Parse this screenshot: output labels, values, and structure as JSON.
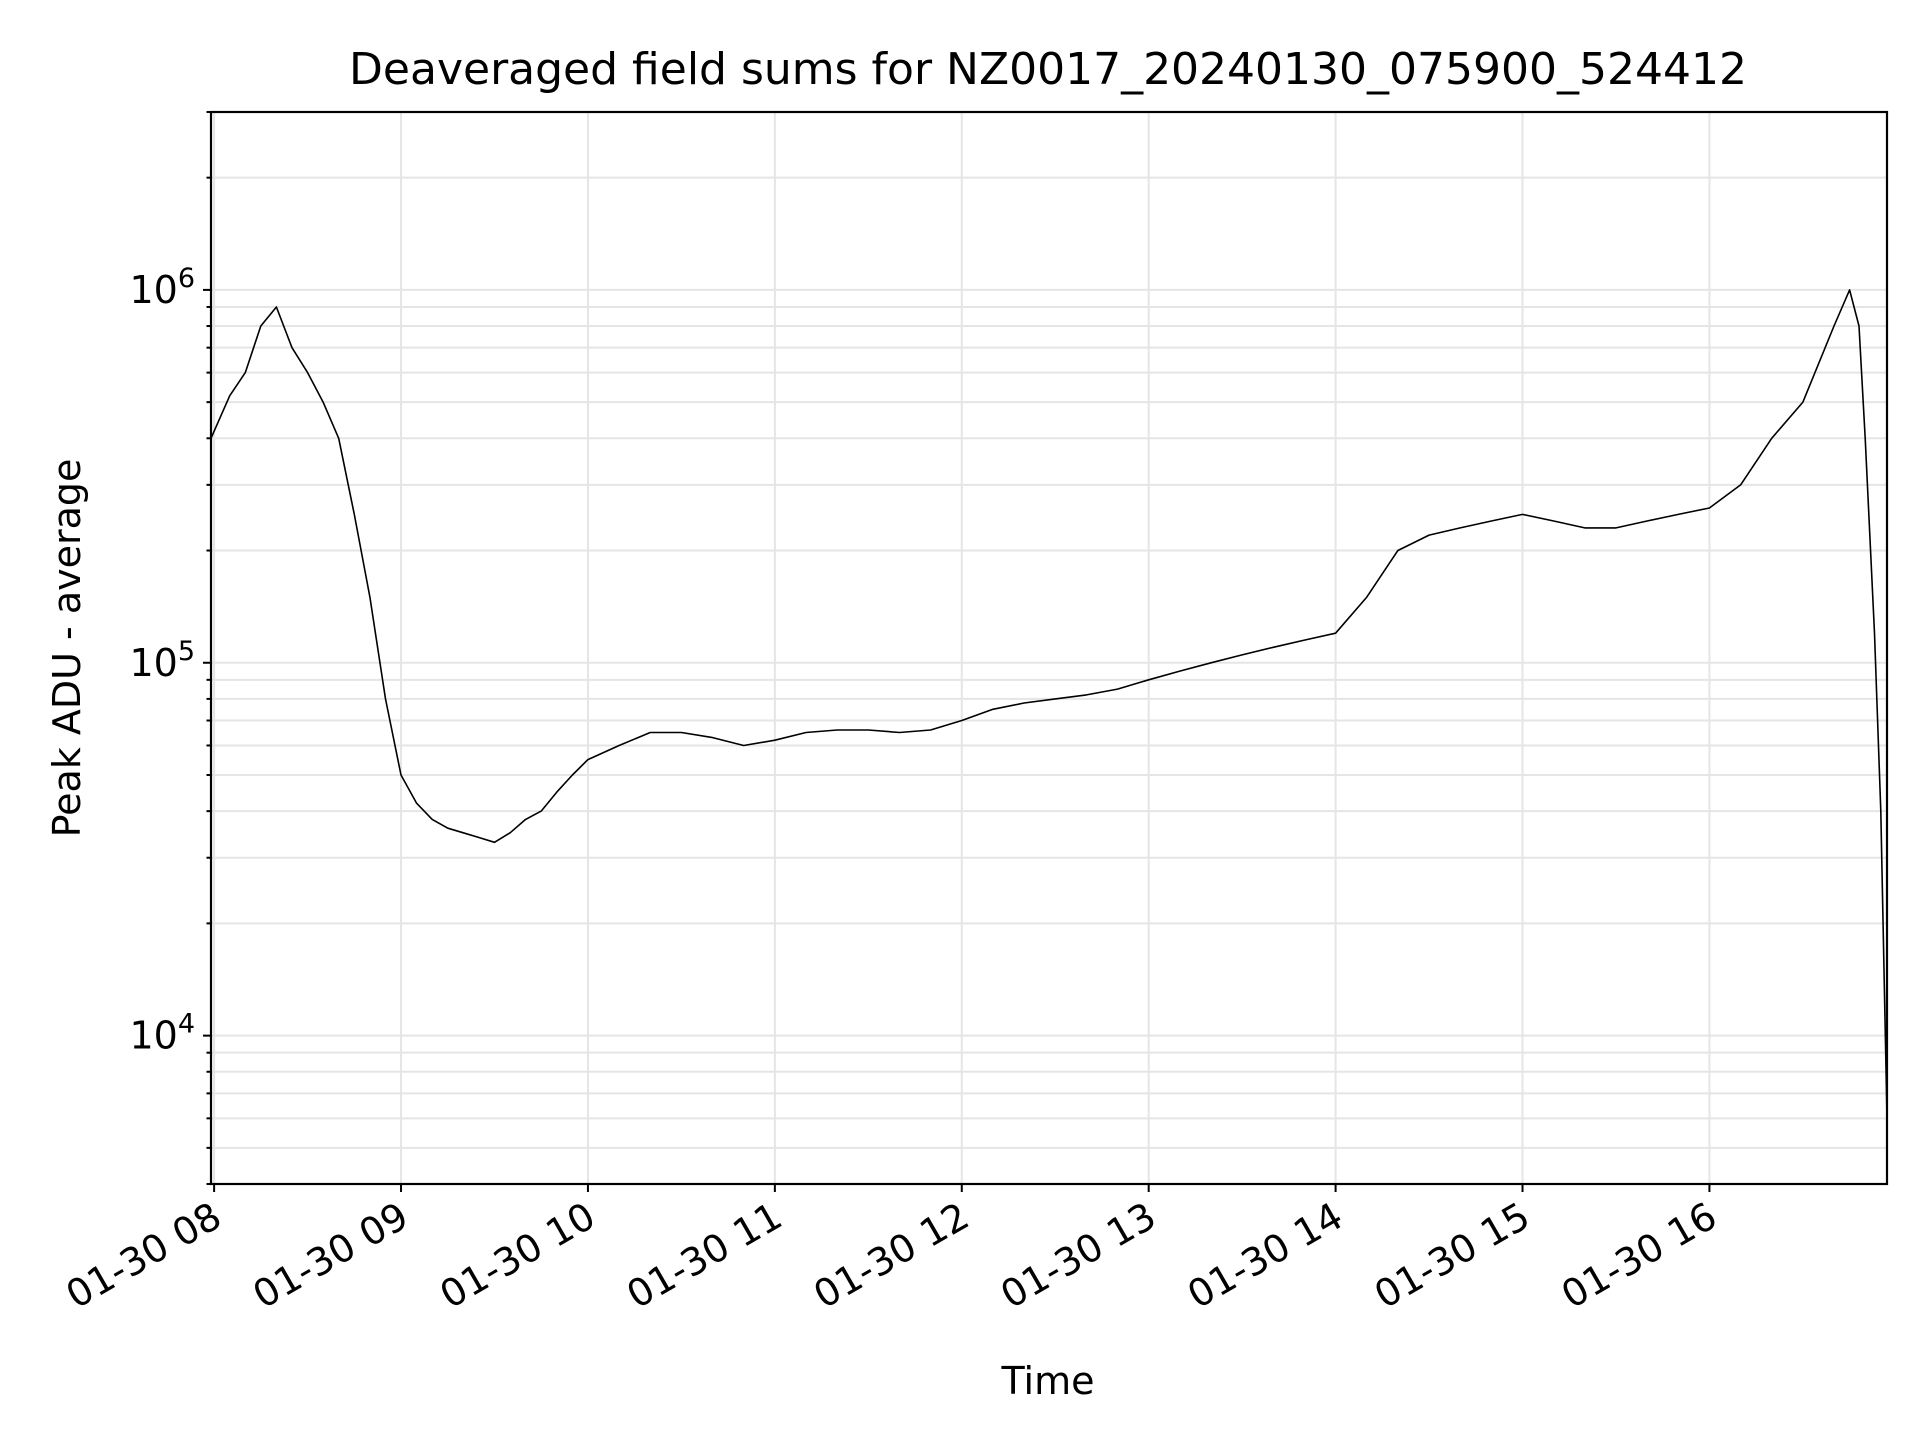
{
  "chart_data": {
    "type": "line",
    "title": "Deaveraged field sums for NZ0017_20240130_075900_524412",
    "xlabel": "Time",
    "ylabel": "Peak ADU - average",
    "yscale": "log",
    "xlim": [
      "2024-01-30 07:59",
      "2024-01-30 16:57"
    ],
    "ylim": [
      4000,
      3000000
    ],
    "x_ticks": [
      "01-30 08",
      "01-30 09",
      "01-30 10",
      "01-30 11",
      "01-30 12",
      "01-30 13",
      "01-30 14",
      "01-30 15",
      "01-30 16"
    ],
    "y_ticks": [
      {
        "value": 10000,
        "base": "10",
        "exp": "4"
      },
      {
        "value": 100000,
        "base": "10",
        "exp": "5"
      },
      {
        "value": 1000000,
        "base": "10",
        "exp": "6"
      }
    ],
    "grid": true,
    "line_color": "#000000",
    "series": [
      {
        "x": [
          "2024-01-30 07:59",
          "2024-01-30 08:05",
          "2024-01-30 08:10",
          "2024-01-30 08:15",
          "2024-01-30 08:20",
          "2024-01-30 08:25",
          "2024-01-30 08:30",
          "2024-01-30 08:35",
          "2024-01-30 08:40",
          "2024-01-30 08:45",
          "2024-01-30 08:50",
          "2024-01-30 08:55",
          "2024-01-30 09:00",
          "2024-01-30 09:05",
          "2024-01-30 09:10",
          "2024-01-30 09:15",
          "2024-01-30 09:20",
          "2024-01-30 09:25",
          "2024-01-30 09:30",
          "2024-01-30 09:35",
          "2024-01-30 09:40",
          "2024-01-30 09:45",
          "2024-01-30 09:50",
          "2024-01-30 09:55",
          "2024-01-30 10:00",
          "2024-01-30 10:10",
          "2024-01-30 10:20",
          "2024-01-30 10:30",
          "2024-01-30 10:40",
          "2024-01-30 10:50",
          "2024-01-30 11:00",
          "2024-01-30 11:10",
          "2024-01-30 11:20",
          "2024-01-30 11:30",
          "2024-01-30 11:40",
          "2024-01-30 11:50",
          "2024-01-30 12:00",
          "2024-01-30 12:10",
          "2024-01-30 12:20",
          "2024-01-30 12:30",
          "2024-01-30 12:40",
          "2024-01-30 12:50",
          "2024-01-30 13:00",
          "2024-01-30 13:10",
          "2024-01-30 13:20",
          "2024-01-30 13:30",
          "2024-01-30 13:40",
          "2024-01-30 13:50",
          "2024-01-30 14:00",
          "2024-01-30 14:10",
          "2024-01-30 14:20",
          "2024-01-30 14:30",
          "2024-01-30 14:40",
          "2024-01-30 14:50",
          "2024-01-30 15:00",
          "2024-01-30 15:10",
          "2024-01-30 15:20",
          "2024-01-30 15:30",
          "2024-01-30 15:40",
          "2024-01-30 15:50",
          "2024-01-30 16:00",
          "2024-01-30 16:10",
          "2024-01-30 16:20",
          "2024-01-30 16:30",
          "2024-01-30 16:40",
          "2024-01-30 16:45",
          "2024-01-30 16:48",
          "2024-01-30 16:50",
          "2024-01-30 16:53",
          "2024-01-30 16:55",
          "2024-01-30 16:57"
        ],
        "y": [
          400000,
          520000,
          600000,
          800000,
          900000,
          700000,
          600000,
          500000,
          400000,
          250000,
          150000,
          80000,
          50000,
          42000,
          38000,
          36000,
          35000,
          34000,
          33000,
          35000,
          38000,
          40000,
          45000,
          50000,
          55000,
          60000,
          65000,
          65000,
          63000,
          60000,
          62000,
          65000,
          66000,
          66000,
          65000,
          66000,
          70000,
          75000,
          78000,
          80000,
          82000,
          85000,
          90000,
          95000,
          100000,
          105000,
          110000,
          115000,
          120000,
          150000,
          200000,
          220000,
          230000,
          240000,
          250000,
          240000,
          230000,
          230000,
          240000,
          250000,
          260000,
          300000,
          400000,
          500000,
          800000,
          1000000,
          800000,
          400000,
          120000,
          40000,
          6000
        ]
      }
    ]
  }
}
